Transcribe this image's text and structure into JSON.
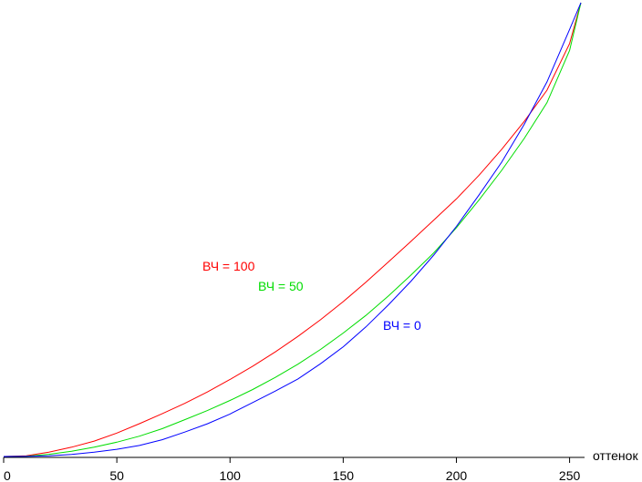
{
  "chart_data": {
    "type": "line",
    "title": "",
    "xlabel": "оттенок",
    "ylabel": "",
    "xlim": [
      0,
      255
    ],
    "ylim": [
      0,
      1
    ],
    "grid": false,
    "x_ticks": [
      "0",
      "50",
      "100",
      "150",
      "200",
      "250"
    ],
    "x_tick_values": [
      0,
      50,
      100,
      150,
      200,
      250
    ],
    "series": [
      {
        "name": "ВЧ = 100",
        "color": "#ff0000",
        "x": [
          0,
          10,
          20,
          30,
          40,
          50,
          60,
          70,
          80,
          90,
          100,
          110,
          120,
          130,
          140,
          150,
          160,
          170,
          180,
          190,
          200,
          210,
          220,
          230,
          240,
          250,
          255
        ],
        "y": [
          0,
          0.0015,
          0.0096,
          0.0204,
          0.0339,
          0.0516,
          0.0722,
          0.0941,
          0.1171,
          0.1422,
          0.1696,
          0.199,
          0.2305,
          0.2647,
          0.3015,
          0.3414,
          0.384,
          0.4289,
          0.4744,
          0.5208,
          0.5677,
          0.6199,
          0.6769,
          0.7386,
          0.8073,
          0.9101,
          1.0
        ]
      },
      {
        "name": "ВЧ = 50",
        "color": "#00dd00",
        "x": [
          0,
          10,
          20,
          30,
          40,
          50,
          60,
          70,
          80,
          90,
          100,
          110,
          120,
          130,
          140,
          150,
          160,
          170,
          180,
          190,
          200,
          210,
          220,
          230,
          240,
          250,
          255
        ],
        "y": [
          0,
          0.0006,
          0.0048,
          0.0115,
          0.0205,
          0.0315,
          0.0448,
          0.0613,
          0.0812,
          0.1012,
          0.1235,
          0.1476,
          0.1743,
          0.2034,
          0.2359,
          0.2721,
          0.3108,
          0.3539,
          0.4003,
          0.4485,
          0.5043,
          0.5655,
          0.6305,
          0.7011,
          0.7797,
          0.895,
          1.0
        ]
      },
      {
        "name": "ВЧ = 0",
        "color": "#0000ff",
        "x": [
          0,
          10,
          20,
          30,
          40,
          50,
          60,
          70,
          80,
          90,
          100,
          110,
          120,
          130,
          140,
          150,
          160,
          170,
          180,
          190,
          200,
          210,
          220,
          230,
          240,
          250,
          255
        ],
        "y": [
          0,
          0.0002,
          0.0015,
          0.0045,
          0.0094,
          0.0159,
          0.0243,
          0.037,
          0.0539,
          0.0721,
          0.0935,
          0.1189,
          0.1442,
          0.1709,
          0.2045,
          0.2418,
          0.2855,
          0.3344,
          0.3866,
          0.4437,
          0.5071,
          0.5765,
          0.6485,
          0.7322,
          0.8256,
          0.9411,
          1.0
        ]
      }
    ]
  }
}
